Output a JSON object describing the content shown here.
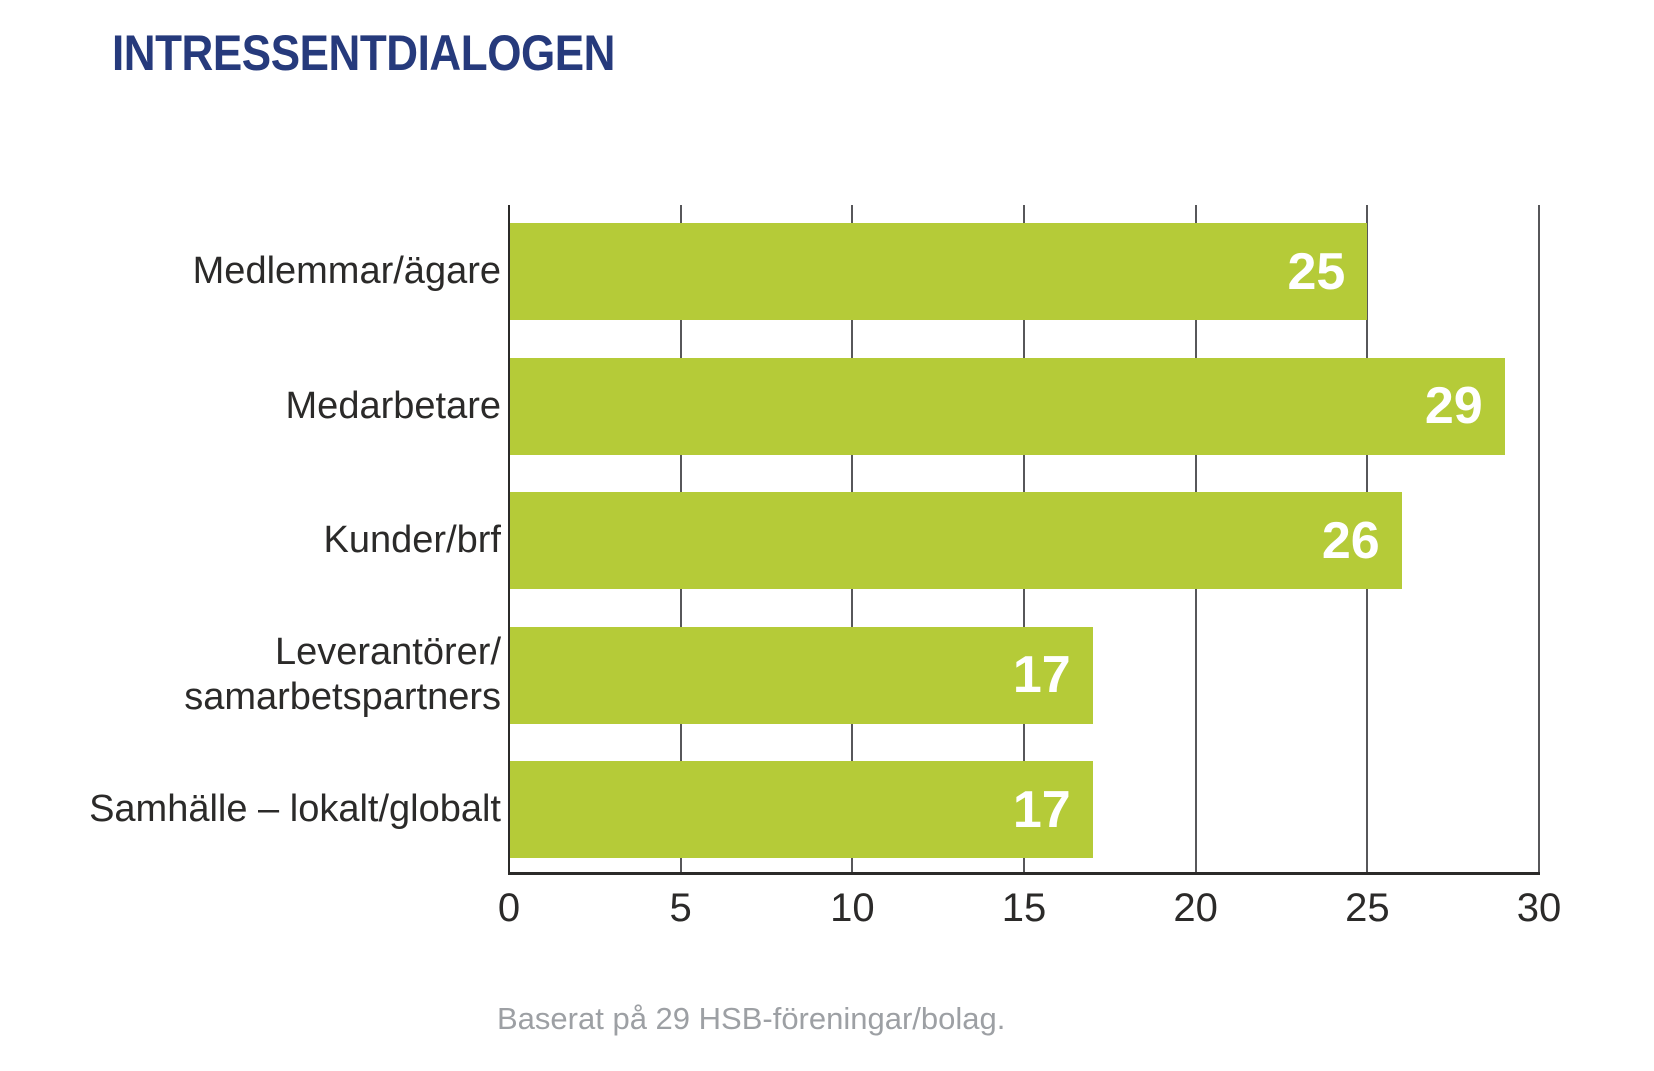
{
  "title": {
    "text": "INTRESSENTDIALOGEN",
    "color": "#263a7c"
  },
  "caption": {
    "text": "Baserat på 29 HSB-föreningar/bolag.",
    "color": "#9da0a4"
  },
  "chart_data": {
    "type": "bar",
    "orientation": "horizontal",
    "title": "INTRESSENTDIALOGEN",
    "categories": [
      "Medlemmar/ägare",
      "Medarbetare",
      "Kunder/brf",
      "Leverantörer/\nsamarbetspartners",
      "Samhälle – lokalt/globalt"
    ],
    "values": [
      25,
      29,
      26,
      17,
      17
    ],
    "xlabel": "",
    "ylabel": "",
    "xlim": [
      0,
      30
    ],
    "x_ticks": [
      0,
      5,
      10,
      15,
      20,
      25,
      30
    ],
    "grid": true,
    "legend": "none",
    "annotation": "Baserat på 29 HSB-föreningar/bolag.",
    "colors": {
      "bar": "#b5cb38",
      "value_label": "#ffffff",
      "gridline": "#57575a",
      "axis_line": "#2b2a29",
      "category_label": "#2b2a29",
      "tick_label": "#2b2a29",
      "title": "#263a7c",
      "caption": "#9da0a4"
    }
  }
}
